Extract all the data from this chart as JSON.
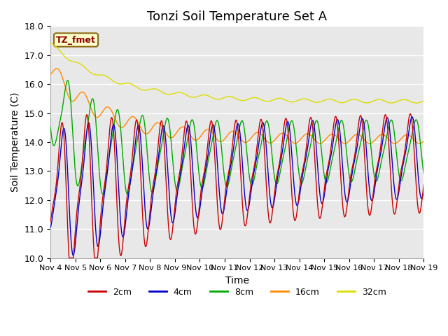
{
  "title": "Tonzi Soil Temperature Set A",
  "ylabel": "Soil Temperature (C)",
  "xlabel": "Time",
  "ylim": [
    10.0,
    18.0
  ],
  "yticks": [
    10.0,
    11.0,
    12.0,
    13.0,
    14.0,
    15.0,
    16.0,
    17.0,
    18.0
  ],
  "xtick_labels": [
    "Nov 4",
    "Nov 5",
    "Nov 6",
    "Nov 7",
    "Nov 8",
    "Nov 9",
    "Nov 10",
    "Nov 11",
    "Nov 12",
    "Nov 13",
    "Nov 14",
    "Nov 15",
    "Nov 16",
    "Nov 17",
    "Nov 18",
    "Nov 19"
  ],
  "colors": {
    "2cm": "#cc0000",
    "4cm": "#0000cc",
    "8cm": "#00aa00",
    "16cm": "#ff8800",
    "32cm": "#dddd00"
  },
  "legend_label": "TZ_fmet",
  "background_color": "#e8e8e8",
  "title_fontsize": 13,
  "axis_label_fontsize": 10,
  "tick_fontsize": 9
}
